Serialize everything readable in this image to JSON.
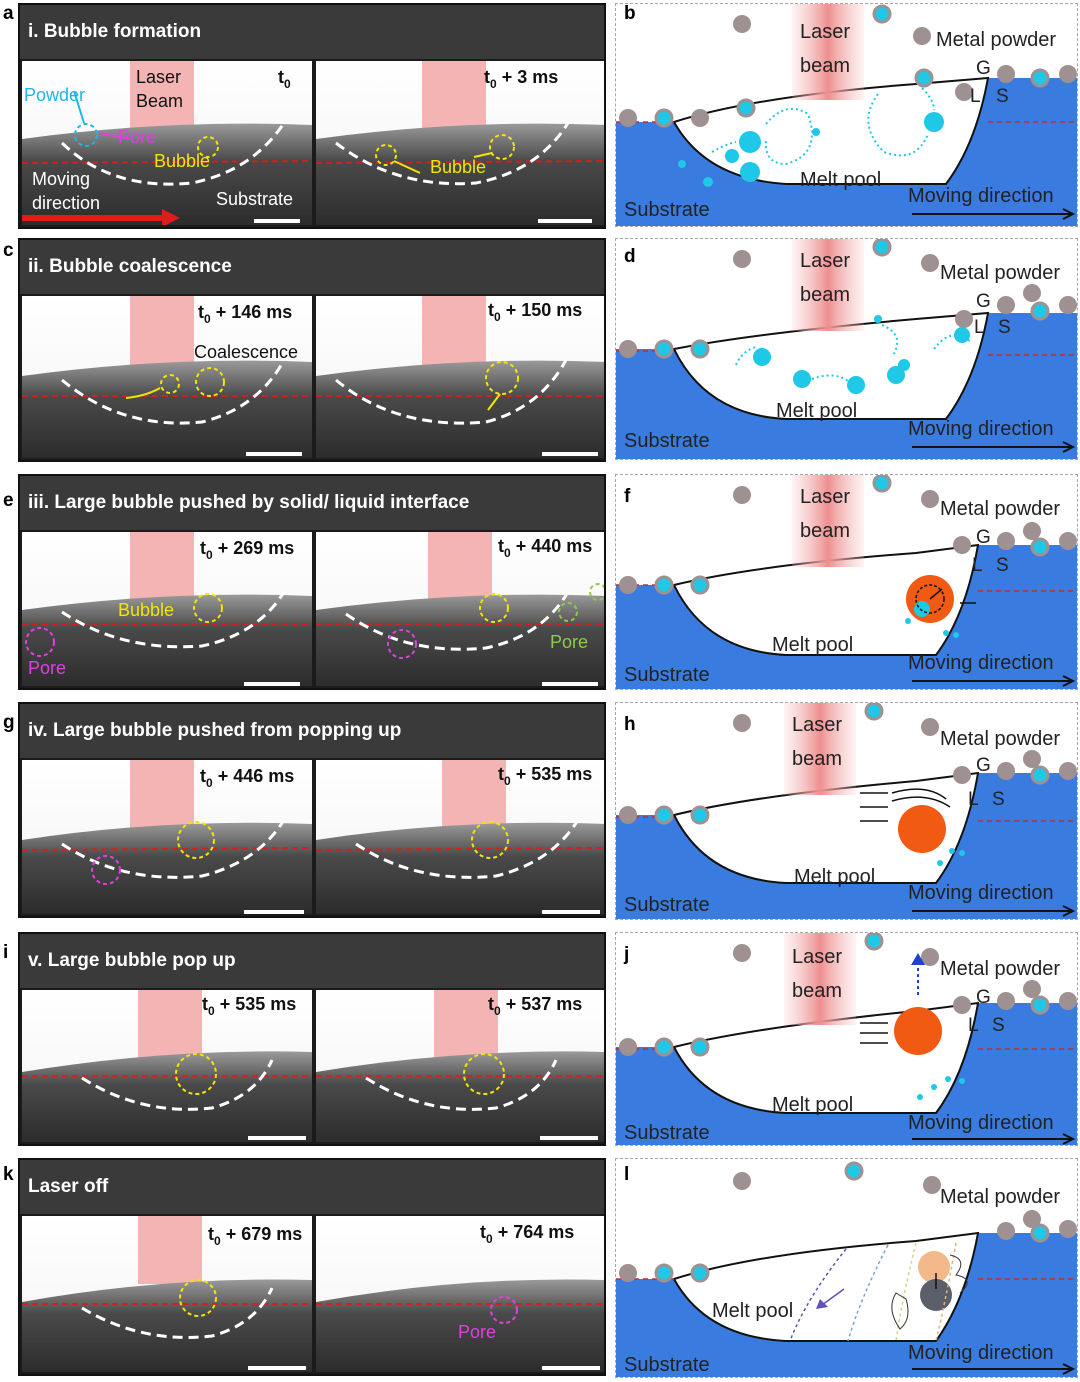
{
  "colors": {
    "substrate": "#3a7be0",
    "laser": "#f0a0a0",
    "powder_grey": "#9f9191",
    "bubble_cyan": "#1ec8e6",
    "bubble_orange": "#f05a12",
    "yellow": "#f2e600",
    "magenta": "#e040e0"
  },
  "rows": [
    {
      "letter": "a",
      "title": "i. Bubble formation",
      "frames": [
        {
          "time": "t",
          "time_sub": "0",
          "time_suffix": ""
        },
        {
          "time": "t",
          "time_sub": "0",
          "time_suffix": " + 3 ms"
        }
      ],
      "labels": {
        "laser": "Laser",
        "laser2": "Beam",
        "powder": "Powder",
        "pore": "Pore",
        "bubble": "Bubble",
        "bubble2": "Bubble",
        "moving": "Moving",
        "moving2": "direction",
        "substrate": "Substrate"
      }
    },
    {
      "letter": "c",
      "title": "ii. Bubble coalescence",
      "frames": [
        {
          "time": "t",
          "time_sub": "0",
          "time_suffix": " + 146 ms"
        },
        {
          "time": "t",
          "time_sub": "0",
          "time_suffix": " + 150 ms"
        }
      ],
      "labels": {
        "coalescence": "Coalescence"
      }
    },
    {
      "letter": "e",
      "title": "iii. Large bubble pushed by solid/ liquid interface",
      "frames": [
        {
          "time": "t",
          "time_sub": "0",
          "time_suffix": " + 269 ms"
        },
        {
          "time": "t",
          "time_sub": "0",
          "time_suffix": " + 440 ms"
        }
      ],
      "labels": {
        "bubble": "Bubble",
        "pore": "Pore",
        "pore2": "Pore"
      }
    },
    {
      "letter": "g",
      "title": "iv. Large bubble pushed from popping up",
      "frames": [
        {
          "time": "t",
          "time_sub": "0",
          "time_suffix": " + 446 ms"
        },
        {
          "time": "t",
          "time_sub": "0",
          "time_suffix": " + 535 ms"
        }
      ]
    },
    {
      "letter": "i",
      "title": "v. Large bubble pop up",
      "frames": [
        {
          "time": "t",
          "time_sub": "0",
          "time_suffix": " + 535 ms"
        },
        {
          "time": "t",
          "time_sub": "0",
          "time_suffix": " + 537 ms"
        }
      ]
    },
    {
      "letter": "k",
      "title": "Laser off",
      "frames": [
        {
          "time": "t",
          "time_sub": "0",
          "time_suffix": " + 679 ms"
        },
        {
          "time": "t",
          "time_sub": "0",
          "time_suffix": " + 764 ms"
        }
      ],
      "labels": {
        "pore": "Pore"
      }
    }
  ],
  "schematics": [
    {
      "letter": "b",
      "laser1": "Laser",
      "laser2": "beam",
      "powder": "Metal powder",
      "g": "G",
      "l": "L",
      "s": "S",
      "pool": "Melt pool",
      "substrate": "Substrate",
      "moving": "Moving direction"
    },
    {
      "letter": "d",
      "laser1": "Laser",
      "laser2": "beam",
      "powder": "Metal powder",
      "g": "G",
      "l": "L",
      "s": "S",
      "pool": "Melt pool",
      "substrate": "Substrate",
      "moving": "Moving direction"
    },
    {
      "letter": "f",
      "laser1": "Laser",
      "laser2": "beam",
      "powder": "Metal powder",
      "g": "G",
      "l": "L",
      "s": "S",
      "pool": "Melt pool",
      "substrate": "Substrate",
      "moving": "Moving direction"
    },
    {
      "letter": "h",
      "laser1": "Laser",
      "laser2": "beam",
      "powder": "Metal powder",
      "g": "G",
      "l": "L",
      "s": "S",
      "pool": "Melt pool",
      "substrate": "Substrate",
      "moving": "Moving direction"
    },
    {
      "letter": "j",
      "laser1": "Laser",
      "laser2": "beam",
      "powder": "Metal powder",
      "g": "G",
      "l": "L",
      "s": "S",
      "pool": "Melt pool",
      "substrate": "Substrate",
      "moving": "Moving direction"
    },
    {
      "letter": "l",
      "powder": "Metal powder",
      "pool": "Melt pool",
      "substrate": "Substrate",
      "moving": "Moving direction"
    }
  ]
}
